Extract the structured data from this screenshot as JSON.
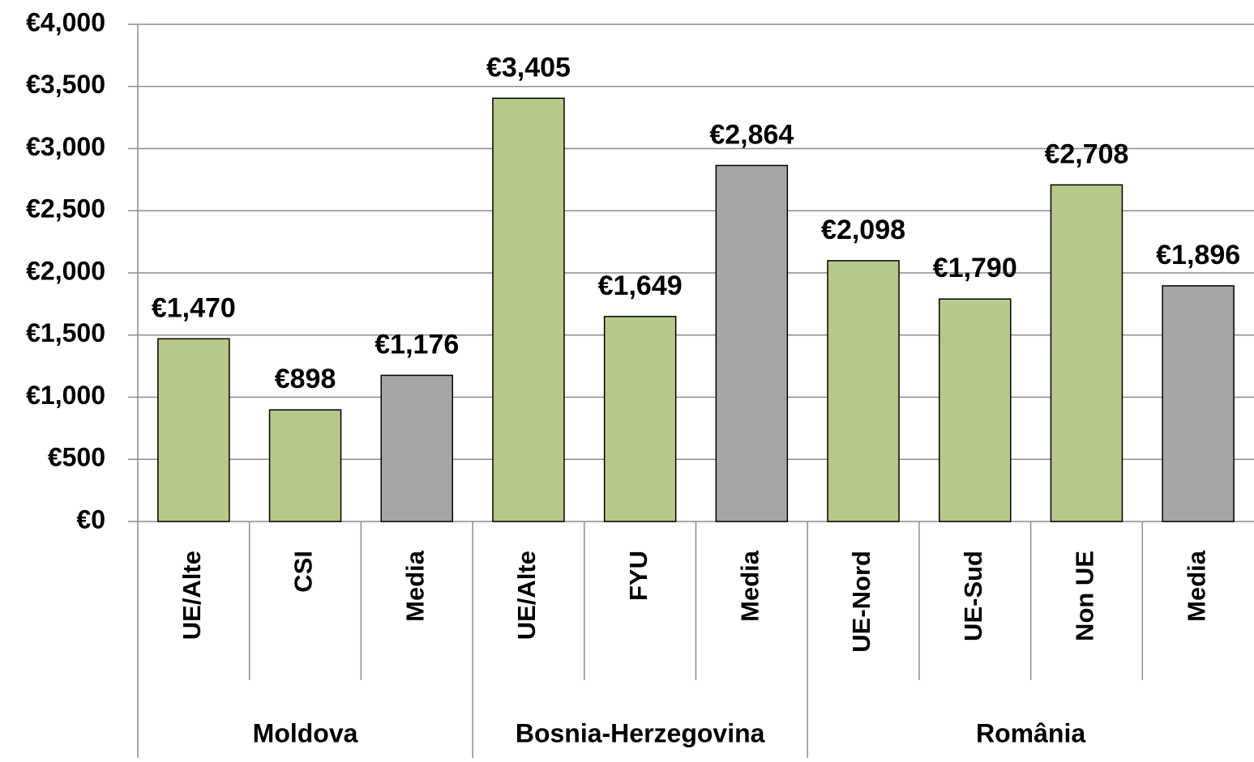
{
  "chart_data": {
    "type": "bar",
    "groups": [
      {
        "name": "Moldova",
        "categories": [
          "UE/Alte",
          "CSI",
          "Media"
        ],
        "values": [
          1470,
          898,
          1176
        ],
        "value_labels": [
          "€1,470",
          "€898",
          "€1,176"
        ],
        "colors": [
          "#b5ca8a",
          "#b5ca8a",
          "#a6a6a6"
        ]
      },
      {
        "name": "Bosnia-Herzegovina",
        "categories": [
          "UE/Alte",
          "FYU",
          "Media"
        ],
        "values": [
          3405,
          1649,
          2864
        ],
        "value_labels": [
          "€3,405",
          "€1,649",
          "€2,864"
        ],
        "colors": [
          "#b5ca8a",
          "#b5ca8a",
          "#a6a6a6"
        ]
      },
      {
        "name": "România",
        "categories": [
          "UE-Nord",
          "UE-Sud",
          "Non UE",
          "Media"
        ],
        "values": [
          2098,
          1790,
          2708,
          1896
        ],
        "value_labels": [
          "€2,098",
          "€1,790",
          "€2,708",
          "€1,896"
        ],
        "colors": [
          "#b5ca8a",
          "#b5ca8a",
          "#b5ca8a",
          "#a6a6a6"
        ]
      }
    ],
    "ylim": [
      0,
      4000
    ],
    "yticks": [
      {
        "value": 0,
        "label": "€0"
      },
      {
        "value": 500,
        "label": "€500"
      },
      {
        "value": 1000,
        "label": "€1,000"
      },
      {
        "value": 1500,
        "label": "€1,500"
      },
      {
        "value": 2000,
        "label": "€2,000"
      },
      {
        "value": 2500,
        "label": "€2,500"
      },
      {
        "value": 3000,
        "label": "€3,000"
      },
      {
        "value": 3500,
        "label": "€3,500"
      },
      {
        "value": 4000,
        "label": "€4,000"
      }
    ],
    "grid": true
  }
}
